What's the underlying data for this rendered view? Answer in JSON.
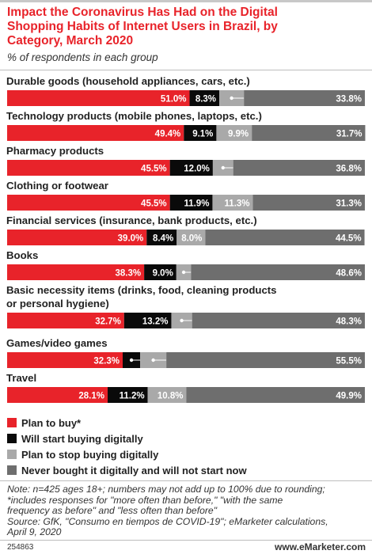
{
  "title_lines": [
    "Impact the Coronavirus Has Had on the Digital",
    "Shopping Habits of Internet Users in Brazil, by",
    "Category, March 2020"
  ],
  "subtitle": "% of respondents in each group",
  "colors": {
    "plan_to_buy": "#e8232a",
    "will_start": "#0a0a0a",
    "plan_to_stop": "#a9a9a9",
    "never": "#6e6e6e",
    "title": "#e8232a"
  },
  "chart_data": {
    "type": "bar",
    "orientation": "horizontal",
    "stacked": true,
    "categories": [
      "Durable goods (household appliances, cars, etc.)",
      "Technology products (mobile phones, laptops, etc.)",
      "Pharmacy products",
      "Clothing or footwear",
      "Financial services (insurance, bank products, etc.)",
      "Books",
      "Basic necessity items (drinks, food, cleaning products or personal hygiene)",
      "Games/video games",
      "Travel"
    ],
    "category_label_lines": [
      [
        "Durable goods (household appliances, cars, etc.)"
      ],
      [
        "Technology products (mobile phones, laptops, etc.)"
      ],
      [
        "Pharmacy products"
      ],
      [
        "Clothing or footwear"
      ],
      [
        "Financial services (insurance, bank products, etc.)"
      ],
      [
        "Books"
      ],
      [
        "Basic necessity items (drinks, food, cleaning products",
        "or personal hygiene)"
      ],
      [
        "Games/video games"
      ],
      [
        "Travel"
      ]
    ],
    "series": [
      {
        "name": "Plan to buy*",
        "values": [
          51.0,
          49.4,
          45.5,
          45.5,
          39.0,
          38.3,
          32.7,
          32.3,
          28.1
        ],
        "labels": [
          "51.0%",
          "49.4%",
          "45.5%",
          "45.5%",
          "39.0%",
          "38.3%",
          "32.7%",
          "32.3%",
          "28.1%"
        ]
      },
      {
        "name": "Will start buying digitally",
        "values": [
          8.3,
          9.1,
          12.0,
          11.9,
          8.4,
          9.0,
          13.2,
          4.9,
          11.2
        ],
        "labels": [
          "8.3%",
          "9.1%",
          "12.0%",
          "11.9%",
          "8.4%",
          "9.0%",
          "13.2%",
          "4.9%",
          "11.2%"
        ]
      },
      {
        "name": "Plan to stop buying digitally",
        "values": [
          6.9,
          9.9,
          5.7,
          11.3,
          8.0,
          4.1,
          5.8,
          7.3,
          10.8
        ],
        "labels": [
          "6.9%",
          "9.9%",
          "5.7%",
          "11.3%",
          "8.0%",
          "4.1%",
          "5.8%",
          "7.3%",
          "10.8%"
        ]
      },
      {
        "name": "Never bought it digitally and will not start now",
        "values": [
          33.8,
          31.7,
          36.8,
          31.3,
          44.5,
          48.6,
          48.3,
          55.5,
          49.9
        ],
        "labels": [
          "33.8%",
          "31.7%",
          "36.8%",
          "31.3%",
          "44.5%",
          "48.6%",
          "48.3%",
          "55.5%",
          "49.9%"
        ]
      }
    ],
    "xlim": [
      0,
      100
    ],
    "legend_position": "bottom-left",
    "grid": false
  },
  "legend": [
    {
      "label": "Plan to buy*",
      "color": "#e8232a"
    },
    {
      "label": "Will start buying digitally",
      "color": "#0a0a0a"
    },
    {
      "label": "Plan to stop buying digitally",
      "color": "#a9a9a9"
    },
    {
      "label": "Never bought it digitally and will not start now",
      "color": "#6e6e6e"
    }
  ],
  "notes": [
    "Note: n=425 ages 18+; numbers may not add up to 100% due to rounding;",
    "*includes responses for \"more often than before,\" \"with the same",
    "frequency as before\" and \"less often than before\"",
    "Source: GfK, \"Consumo en tiempos de COVID-19\"; eMarketer calculations,",
    "April 9, 2020"
  ],
  "footer": {
    "id": "254863",
    "brand_prefix": "www.",
    "brand_name": "eMarketer",
    "brand_suffix": ".com"
  }
}
